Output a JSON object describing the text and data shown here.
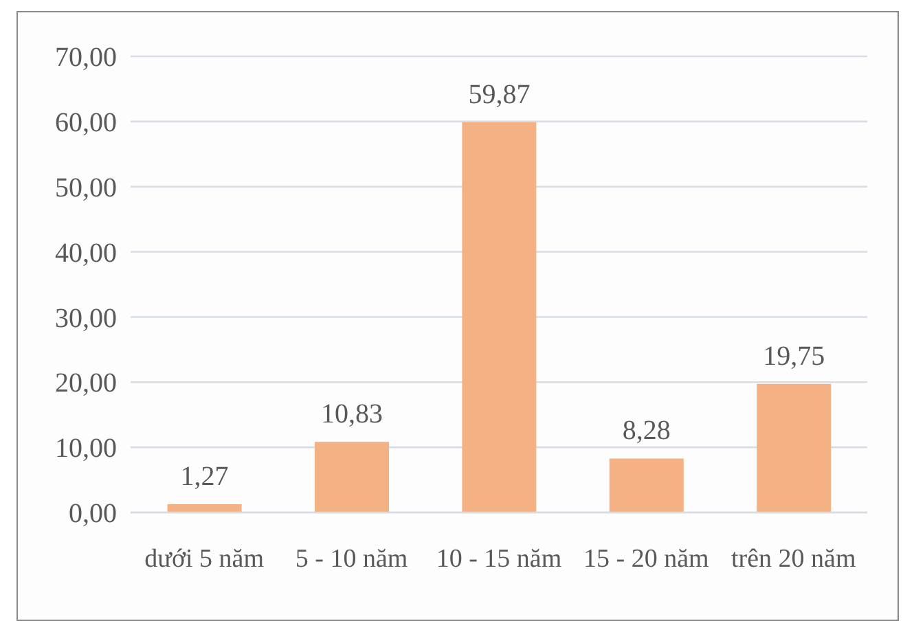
{
  "chart_data": {
    "type": "bar",
    "categories": [
      "dưới 5 năm",
      "5 - 10 năm",
      "10 - 15 năm",
      "15 - 20 năm",
      "trên 20 năm"
    ],
    "values": [
      1.27,
      10.83,
      59.87,
      8.28,
      19.75
    ],
    "color": "#f4b183",
    "value_labels": [
      "1,27",
      "10,83",
      "59,87",
      "8,28",
      "19,75"
    ],
    "ylim": [
      0,
      70
    ],
    "yticks": [
      {
        "value": 0,
        "label": "0,00"
      },
      {
        "value": 10,
        "label": "10,00"
      },
      {
        "value": 20,
        "label": "20,00"
      },
      {
        "value": 30,
        "label": "30,00"
      },
      {
        "value": 40,
        "label": "40,00"
      },
      {
        "value": 50,
        "label": "50,00"
      },
      {
        "value": 60,
        "label": "60,00"
      },
      {
        "value": 70,
        "label": "70,00"
      }
    ],
    "grid": "y"
  }
}
